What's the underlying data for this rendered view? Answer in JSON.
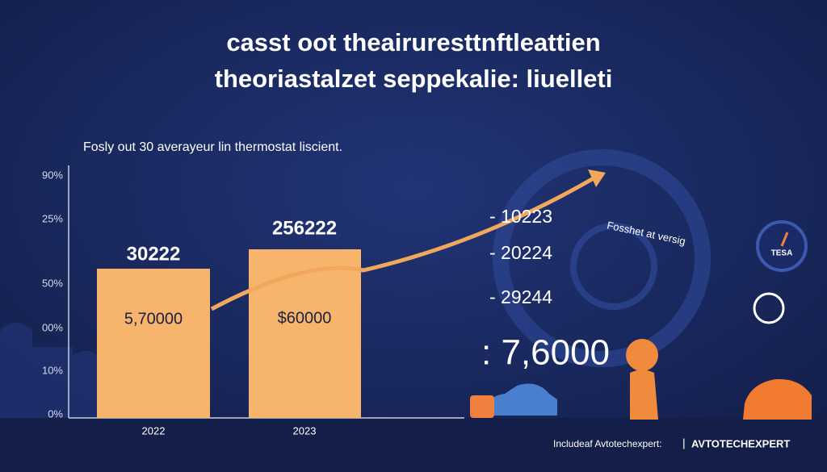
{
  "header": {
    "title_lines": [
      "casst oot theairuresttnftleattien",
      "theoriastalzet seppekalie: liuelleti"
    ],
    "subtitle": "Fosly out 30 averayeur lin thermostat liscient."
  },
  "y_axis_labels": [
    "90%",
    "25%",
    "50%",
    "00%",
    "10%",
    "0%"
  ],
  "bars": [
    {
      "category": "2022",
      "top_label": "30222",
      "inner_label": "5,70000"
    },
    {
      "category": "2023",
      "top_label": "256222",
      "inner_label": "$60000"
    }
  ],
  "side_list": [
    "- 10223",
    "- 20224",
    "- 29244"
  ],
  "big_number": ": 7,6000",
  "dial_caption": "Fosshet at versig",
  "gauge_caption": "TESA",
  "footer": {
    "left": "Includeaf Avtotechexpert:",
    "separator": "|",
    "brand": "AVTOTECHEXPERT"
  }
}
